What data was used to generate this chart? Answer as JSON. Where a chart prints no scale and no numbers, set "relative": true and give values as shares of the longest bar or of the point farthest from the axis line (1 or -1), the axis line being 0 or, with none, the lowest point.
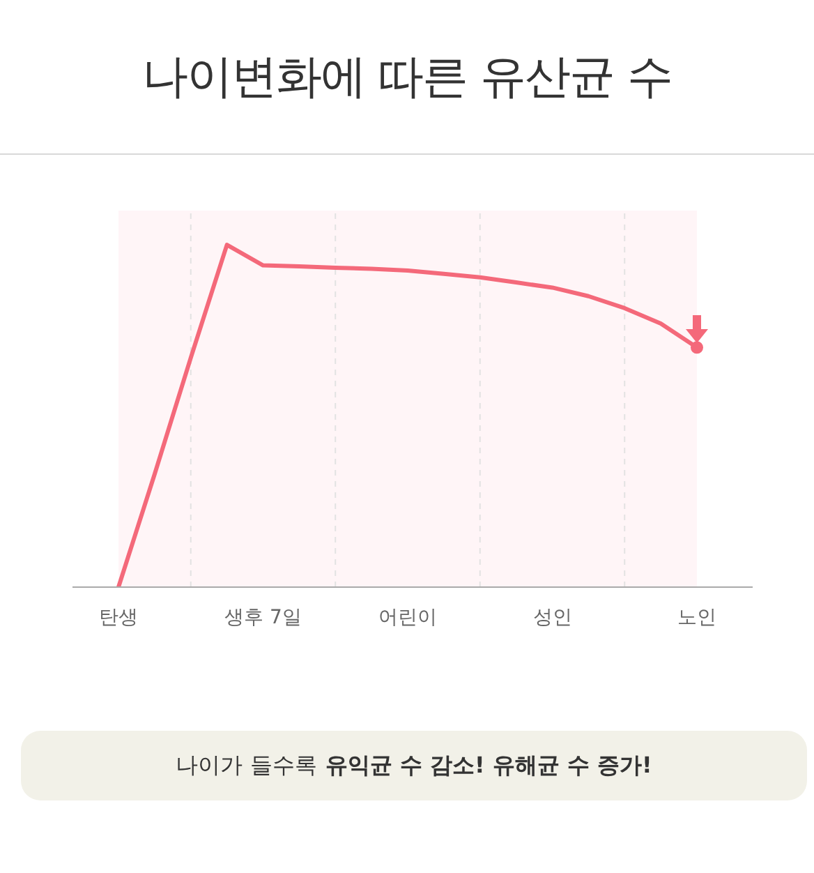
{
  "chart_data": {
    "type": "line",
    "title": "나이변화에 따른 유산균 수",
    "relative": true,
    "categories": [
      "탄생",
      null,
      null,
      null,
      "생후 7일",
      null,
      null,
      null,
      "어린이",
      null,
      null,
      null,
      "성인",
      null,
      null,
      null,
      "노인"
    ],
    "series": [
      {
        "color": "#f4697a",
        "values": [
          0,
          0.33,
          0.67,
          1,
          0.94,
          0.937,
          0.933,
          0.93,
          0.925,
          0.915,
          0.905,
          0.89,
          0.875,
          0.85,
          0.815,
          0.77,
          0.7
        ]
      }
    ],
    "grid": "x",
    "bands": [
      {
        "axis": "x",
        "from": "탄생",
        "to": "노인",
        "color": "#fff5f7"
      }
    ],
    "annotations": [
      "나이가 들수록",
      "유익균 수 감소! 유해균 수 증가!"
    ]
  }
}
